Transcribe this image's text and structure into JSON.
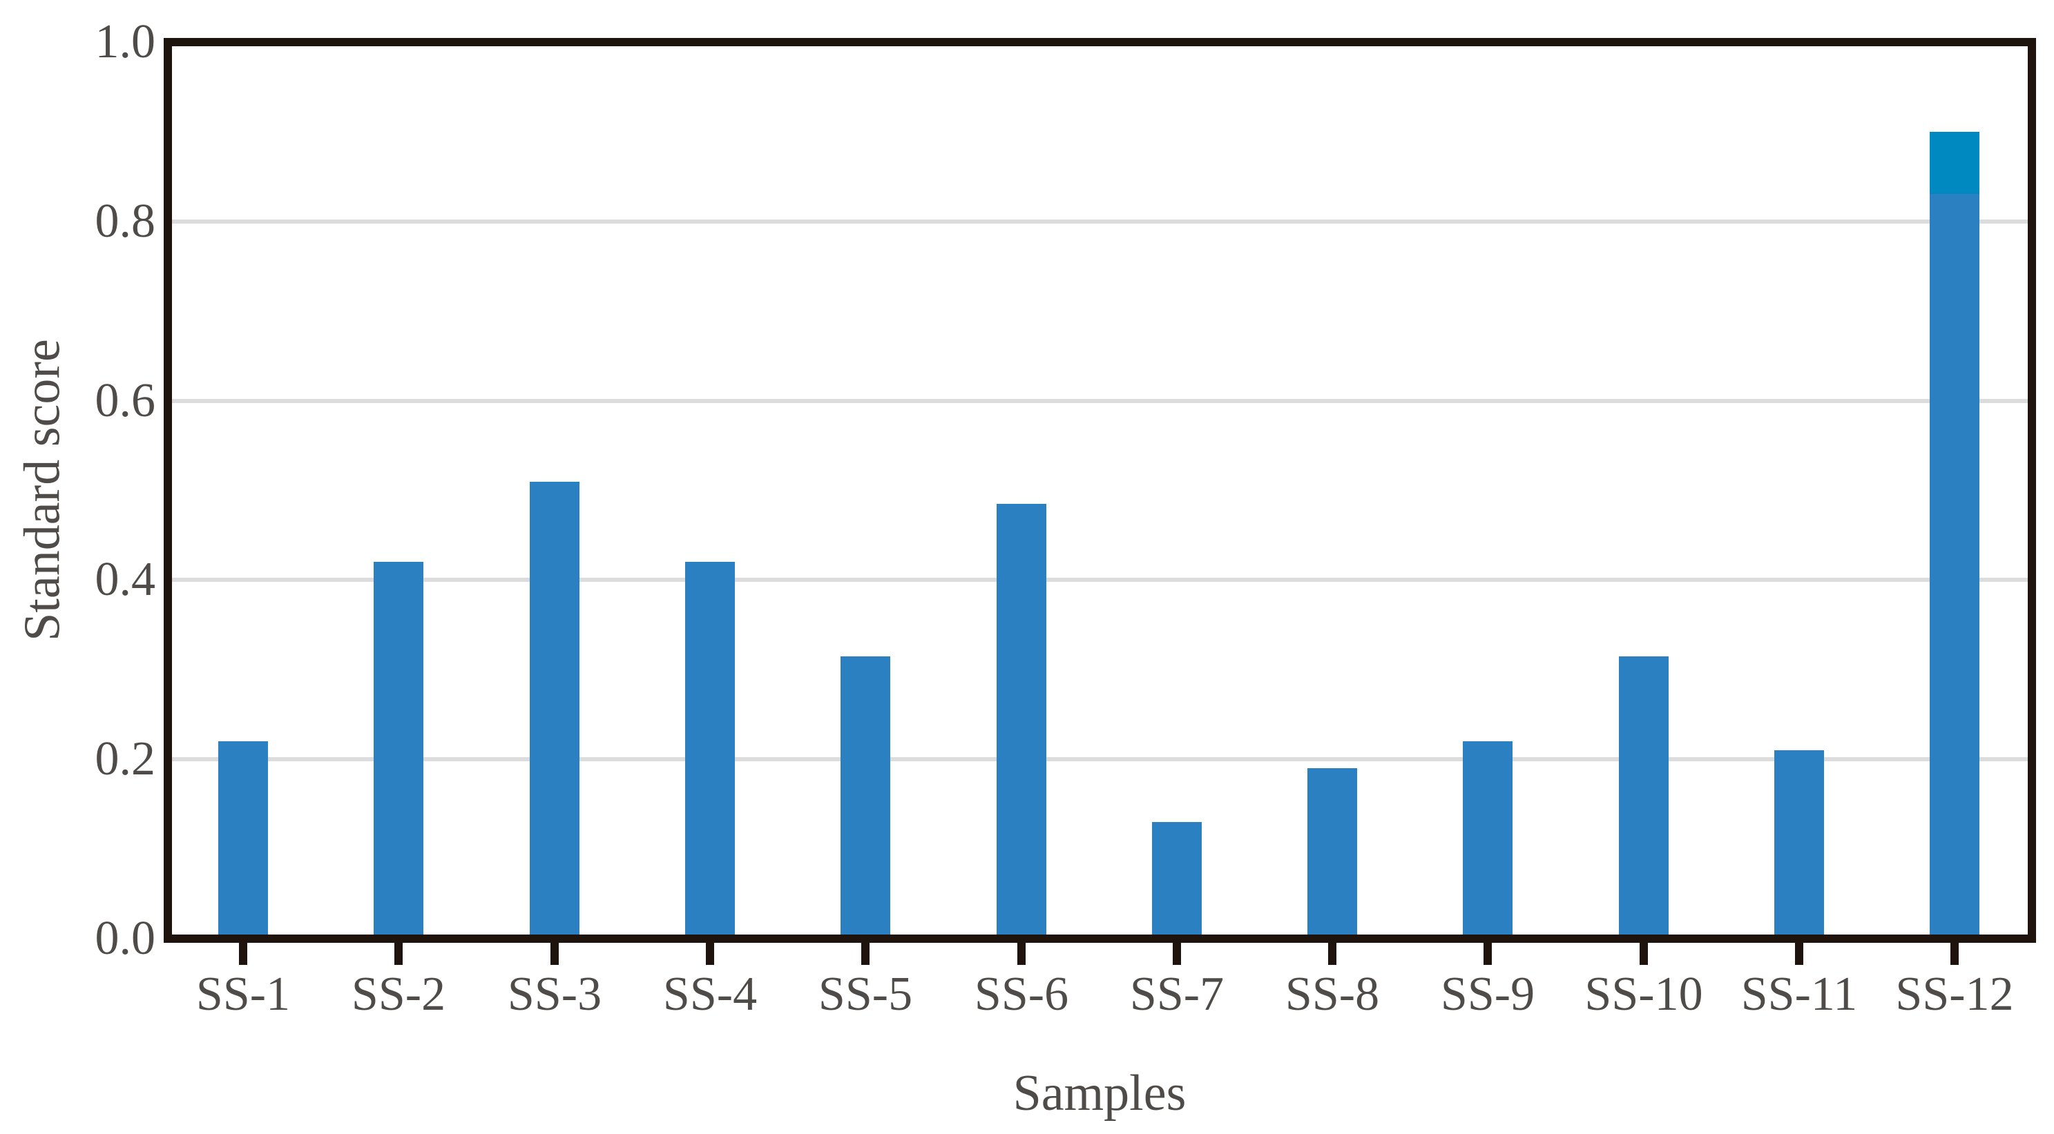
{
  "figure": {
    "background": "#ffffff",
    "text_color": "#4f4b48",
    "spine_color": "#1e140d",
    "grid_color": "#dcdcdc",
    "bar_color": "#2a80c1",
    "overlay_color": "#0088c0"
  },
  "chart_data": {
    "type": "bar",
    "title": "",
    "xlabel": "Samples",
    "ylabel": "Standard score",
    "categories": [
      "SS-1",
      "SS-2",
      "SS-3",
      "SS-4",
      "SS-5",
      "SS-6",
      "SS-7",
      "SS-8",
      "SS-9",
      "SS-10",
      "SS-11",
      "SS-12"
    ],
    "values": [
      0.22,
      0.42,
      0.51,
      0.42,
      0.315,
      0.485,
      0.13,
      0.19,
      0.22,
      0.315,
      0.21,
      0.9
    ],
    "overlay_segment": {
      "category": "SS-12",
      "from": 0.83,
      "to": 0.9,
      "color": "#0088c0"
    },
    "ylim": [
      0.0,
      1.0
    ],
    "yticks": [
      {
        "value": 0.0,
        "label": "0.0"
      },
      {
        "value": 0.2,
        "label": "0.2"
      },
      {
        "value": 0.4,
        "label": "0.4"
      },
      {
        "value": 0.6,
        "label": "0.6"
      },
      {
        "value": 0.8,
        "label": "0.8"
      },
      {
        "value": 1.0,
        "label": "1.0"
      }
    ],
    "gridlines": [
      0.2,
      0.4,
      0.6,
      0.8
    ],
    "grid": "horizontal",
    "legend": "none"
  }
}
